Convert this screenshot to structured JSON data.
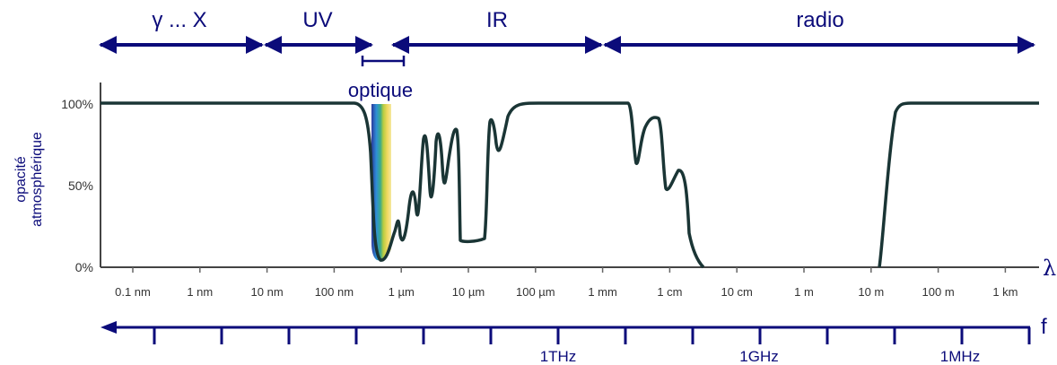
{
  "bands": {
    "gamma_x": "γ ... X",
    "uv": "UV",
    "ir": "IR",
    "radio": "radio",
    "optique": "optique"
  },
  "y_axis": {
    "label_line1": "opacité",
    "label_line2": "atmosphérique",
    "ticks": [
      "100%",
      "50%",
      "0%"
    ]
  },
  "wavelength_axis": {
    "symbol": "λ",
    "ticks": [
      "0.1 nm",
      "1 nm",
      "10 nm",
      "100 nm",
      "1 µm",
      "10 µm",
      "100 µm",
      "1 mm",
      "1 cm",
      "10 cm",
      "1 m",
      "10 m",
      "100 m",
      "1 km"
    ]
  },
  "frequency_axis": {
    "symbol": "f",
    "labels": [
      "1THz",
      "1GHz",
      "1MHz"
    ]
  },
  "colors": {
    "arrow": "#0b0b7a",
    "curve": "#1a3535",
    "axis": "#333333"
  }
}
